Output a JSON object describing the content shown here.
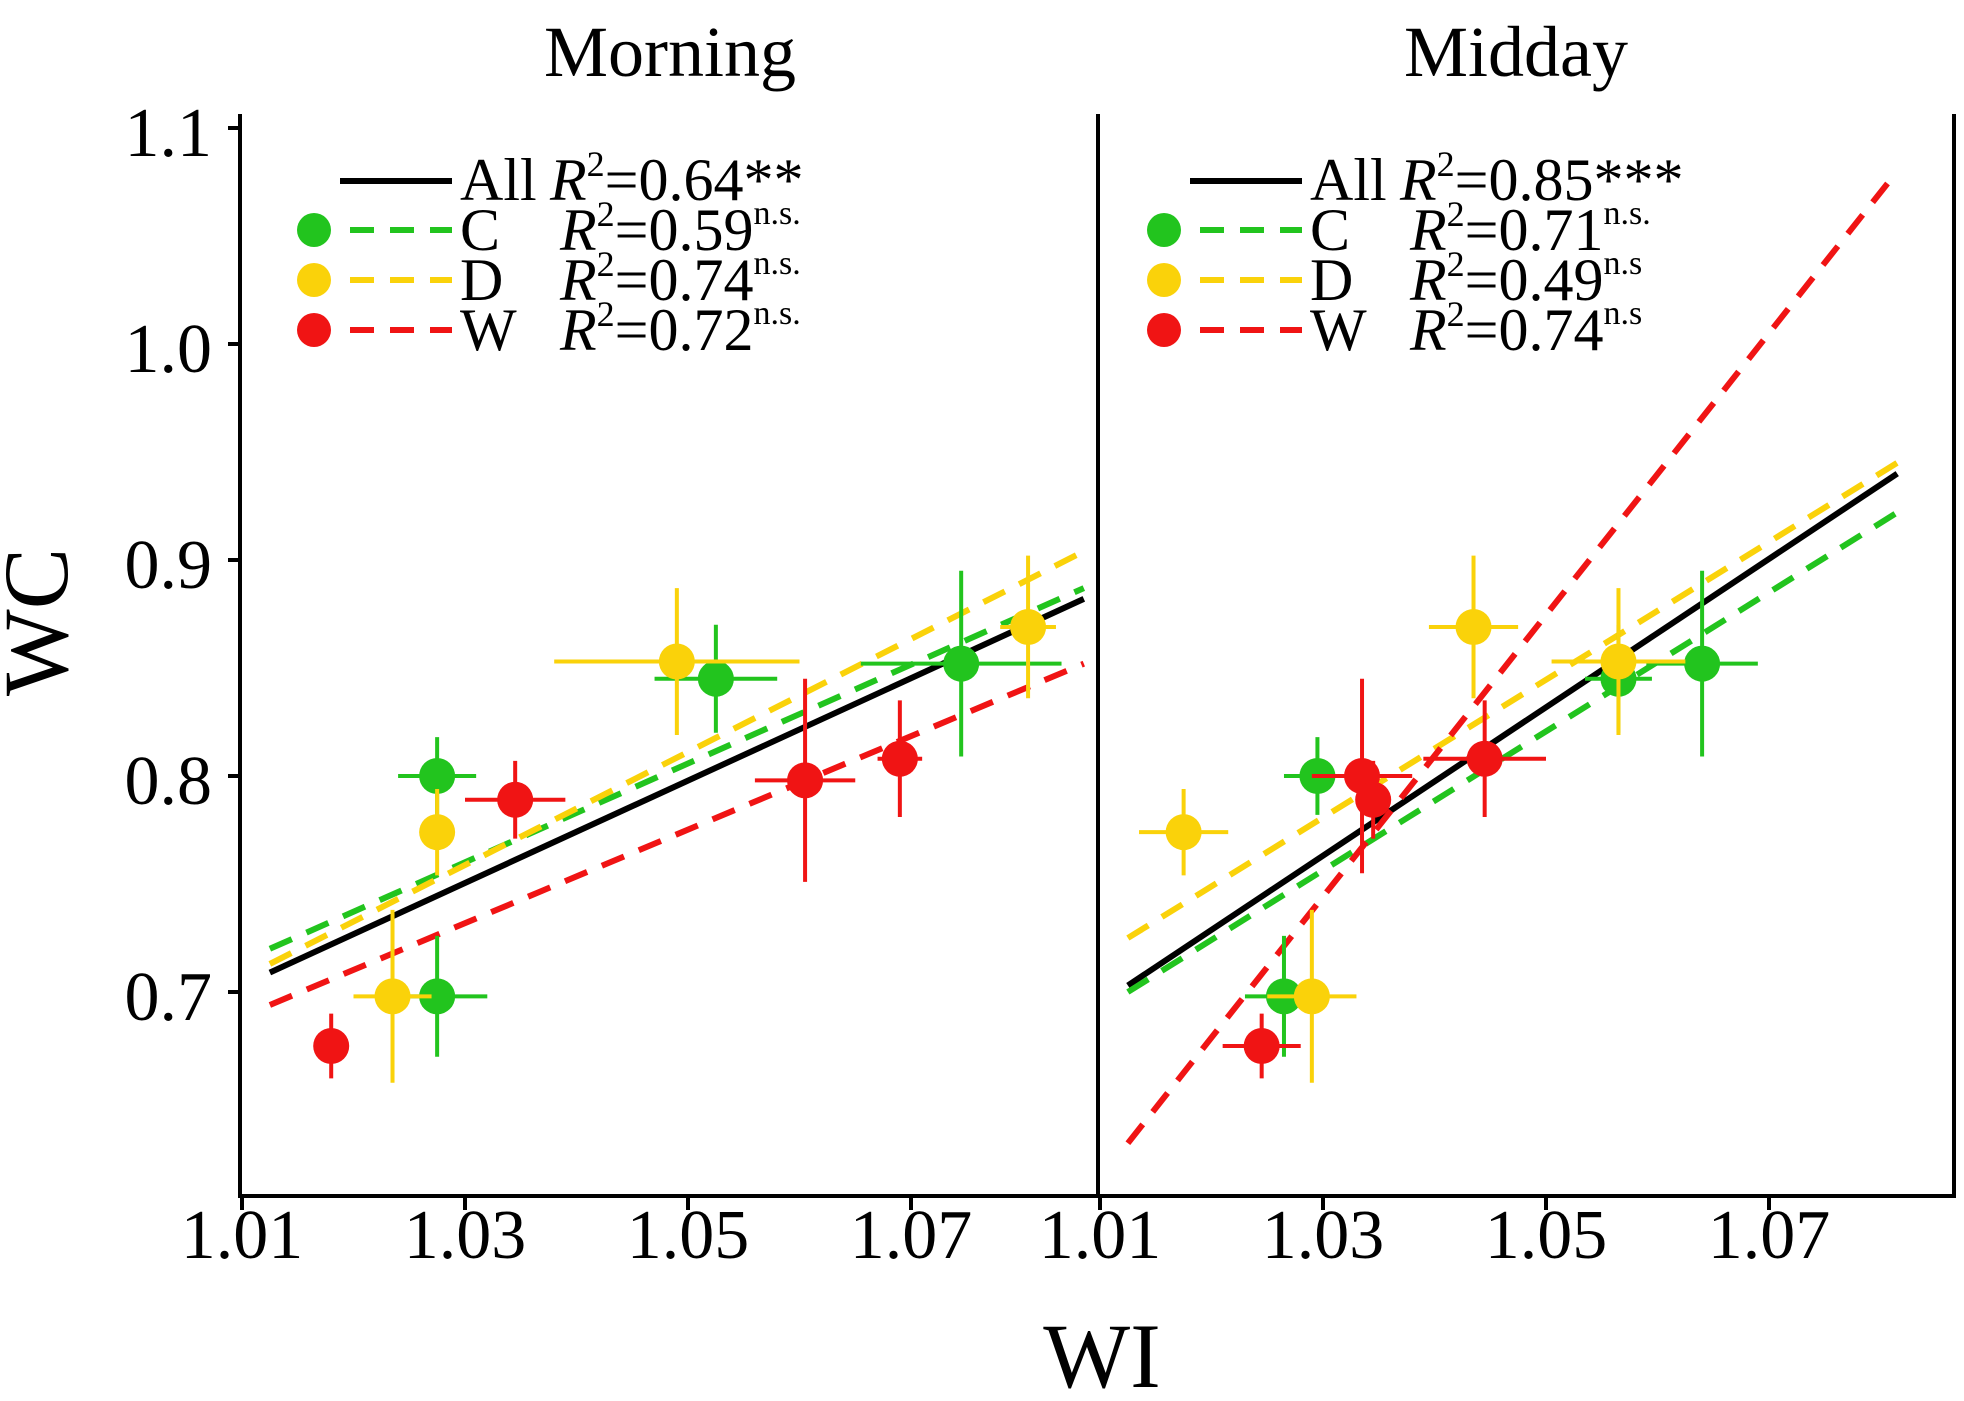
{
  "figure": {
    "ylabel": "WC",
    "xlabel": "WI",
    "ytick_labels": [
      "0.7",
      "0.8",
      "0.9",
      "1.0",
      "1.1"
    ],
    "xtick_labels": [
      "1.01",
      "1.03",
      "1.05",
      "1.07"
    ]
  },
  "colors": {
    "C": "#22c41e",
    "D": "#fad20a",
    "W": "#f01414",
    "All": "#000000"
  },
  "chart_data": [
    {
      "type": "scatter",
      "title": "Morning",
      "xlabel": "WI",
      "ylabel": "WC",
      "xlim": [
        1.01,
        1.086
      ],
      "ylim": [
        0.6,
        1.11
      ],
      "yticks": [
        0.7,
        0.8,
        0.9,
        1.0,
        1.1
      ],
      "xticks": [
        1.01,
        1.03,
        1.05,
        1.07
      ],
      "legend": [
        {
          "group": "All",
          "label": "All",
          "r2_prefix": "R",
          "r2_value": "=0.64",
          "r2_sig": "**",
          "sig_style": "inline"
        },
        {
          "group": "C",
          "label": "C",
          "r2_prefix": "R",
          "r2_value": "=0.59",
          "r2_sig": "n.s.",
          "sig_style": "super"
        },
        {
          "group": "D",
          "label": "D",
          "r2_prefix": "R",
          "r2_value": "=0.74",
          "r2_sig": "n.s.",
          "sig_style": "super"
        },
        {
          "group": "W",
          "label": "W",
          "r2_prefix": "R",
          "r2_value": "=0.72",
          "r2_sig": "n.s.",
          "sig_style": "super"
        }
      ],
      "lines": [
        {
          "group": "All",
          "x": [
            1.0125,
            1.0855
          ],
          "y": [
            0.709,
            0.882
          ]
        },
        {
          "group": "C",
          "x": [
            1.0125,
            1.0855
          ],
          "y": [
            0.72,
            0.887
          ]
        },
        {
          "group": "D",
          "x": [
            1.0125,
            1.0855
          ],
          "y": [
            0.713,
            0.904
          ]
        },
        {
          "group": "W",
          "x": [
            1.0125,
            1.0855
          ],
          "y": [
            0.694,
            0.852
          ]
        }
      ],
      "series": [
        {
          "group": "C",
          "points": [
            {
              "x": 1.0275,
              "y": 0.8,
              "xerr": 0.0035,
              "yerr": 0.018
            },
            {
              "x": 1.0275,
              "y": 0.698,
              "xerr": 0.0045,
              "yerr": 0.028
            },
            {
              "x": 1.0525,
              "y": 0.845,
              "xerr": 0.0055,
              "yerr": 0.025
            },
            {
              "x": 1.0745,
              "y": 0.852,
              "xerr": 0.009,
              "yerr": 0.043
            }
          ]
        },
        {
          "group": "D",
          "points": [
            {
              "x": 1.0235,
              "y": 0.698,
              "xerr": 0.0035,
              "yerr": 0.04
            },
            {
              "x": 1.0275,
              "y": 0.774,
              "xerr": 0.0015,
              "yerr": 0.02
            },
            {
              "x": 1.049,
              "y": 0.853,
              "xerr": 0.011,
              "yerr": 0.034
            },
            {
              "x": 1.0805,
              "y": 0.869,
              "xerr": 0.0025,
              "yerr": 0.033
            }
          ]
        },
        {
          "group": "W",
          "points": [
            {
              "x": 1.018,
              "y": 0.675,
              "xerr": 0.001,
              "yerr": 0.015
            },
            {
              "x": 1.0345,
              "y": 0.789,
              "xerr": 0.0045,
              "yerr": 0.018
            },
            {
              "x": 1.0605,
              "y": 0.798,
              "xerr": 0.0045,
              "yerr": 0.047
            },
            {
              "x": 1.069,
              "y": 0.808,
              "xerr": 0.002,
              "yerr": 0.027
            }
          ]
        }
      ]
    },
    {
      "type": "scatter",
      "title": "Midday",
      "xlabel": "WI",
      "ylabel": "WC",
      "xlim": [
        1.01,
        1.0865
      ],
      "ylim": [
        0.6,
        1.11
      ],
      "yticks": [
        0.7,
        0.8,
        0.9,
        1.0,
        1.1
      ],
      "xticks": [
        1.01,
        1.03,
        1.05,
        1.07
      ],
      "legend": [
        {
          "group": "All",
          "label": "All",
          "r2_prefix": "R",
          "r2_value": "=0.85",
          "r2_sig": "***",
          "sig_style": "inline"
        },
        {
          "group": "C",
          "label": "C",
          "r2_prefix": "R",
          "r2_value": "=0.71",
          "r2_sig": "n.s.",
          "sig_style": "super"
        },
        {
          "group": "D",
          "label": "D",
          "r2_prefix": "R",
          "r2_value": "=0.49",
          "r2_sig": "n.s",
          "sig_style": "super"
        },
        {
          "group": "W",
          "label": "W",
          "r2_prefix": "R",
          "r2_value": "=0.74",
          "r2_sig": "n.s",
          "sig_style": "super"
        }
      ],
      "lines": [
        {
          "group": "All",
          "x": [
            1.0125,
            1.0815
          ],
          "y": [
            0.703,
            0.94
          ]
        },
        {
          "group": "C",
          "x": [
            1.0125,
            1.0815
          ],
          "y": [
            0.7,
            0.922
          ]
        },
        {
          "group": "D",
          "x": [
            1.0125,
            1.0815
          ],
          "y": [
            0.725,
            0.945
          ]
        },
        {
          "group": "W",
          "x": [
            1.0125,
            1.0815
          ],
          "y": [
            0.63,
            1.08
          ]
        }
      ],
      "series": [
        {
          "group": "C",
          "points": [
            {
              "x": 1.0295,
              "y": 0.8,
              "xerr": 0.003,
              "yerr": 0.018
            },
            {
              "x": 1.0265,
              "y": 0.698,
              "xerr": 0.0035,
              "yerr": 0.028
            },
            {
              "x": 1.0565,
              "y": 0.845,
              "xerr": 0.003,
              "yerr": 0.025
            },
            {
              "x": 1.064,
              "y": 0.852,
              "xerr": 0.005,
              "yerr": 0.043
            }
          ]
        },
        {
          "group": "D",
          "points": [
            {
              "x": 1.029,
              "y": 0.698,
              "xerr": 0.004,
              "yerr": 0.04
            },
            {
              "x": 1.0175,
              "y": 0.774,
              "xerr": 0.004,
              "yerr": 0.02
            },
            {
              "x": 1.0435,
              "y": 0.869,
              "xerr": 0.004,
              "yerr": 0.033
            },
            {
              "x": 1.0565,
              "y": 0.853,
              "xerr": 0.006,
              "yerr": 0.034
            }
          ]
        },
        {
          "group": "W",
          "points": [
            {
              "x": 1.0245,
              "y": 0.675,
              "xerr": 0.0035,
              "yerr": 0.015
            },
            {
              "x": 1.0335,
              "y": 0.8,
              "xerr": 0.0045,
              "yerr": 0.045
            },
            {
              "x": 1.0345,
              "y": 0.789,
              "xerr": 0.0015,
              "yerr": 0.018
            },
            {
              "x": 1.0445,
              "y": 0.808,
              "xerr": 0.0055,
              "yerr": 0.027
            }
          ]
        }
      ]
    }
  ]
}
